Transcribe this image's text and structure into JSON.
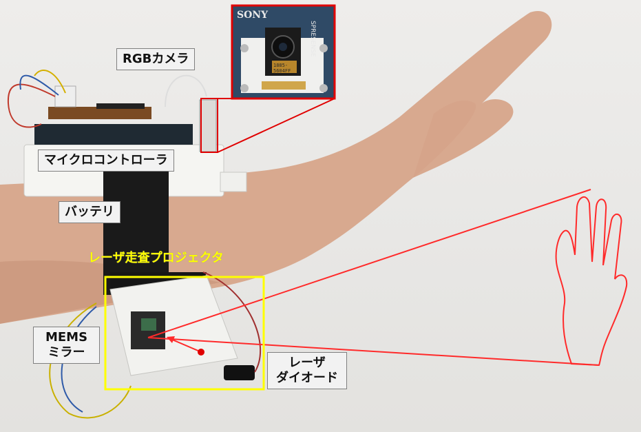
{
  "labels": {
    "rgb_camera": "RGBカメラ",
    "microcontroller": "マイクロコントローラ",
    "battery": "バッテリ",
    "laser_projector": "レーザ走査プロジェクタ",
    "mems_line1": "MEMS",
    "mems_line2": "ミラー",
    "laser_diode_line1": "レーザ",
    "laser_diode_line2": "ダイオード"
  },
  "inset": {
    "brand": "SONY",
    "board": "SPRESENSE",
    "chip_line1": "1885-",
    "chip_line2": "5604FF"
  },
  "colors": {
    "highlight_red": "#e00000",
    "projector_box_yellow": "#ffff00",
    "projection_red": "#ff2a2a"
  }
}
